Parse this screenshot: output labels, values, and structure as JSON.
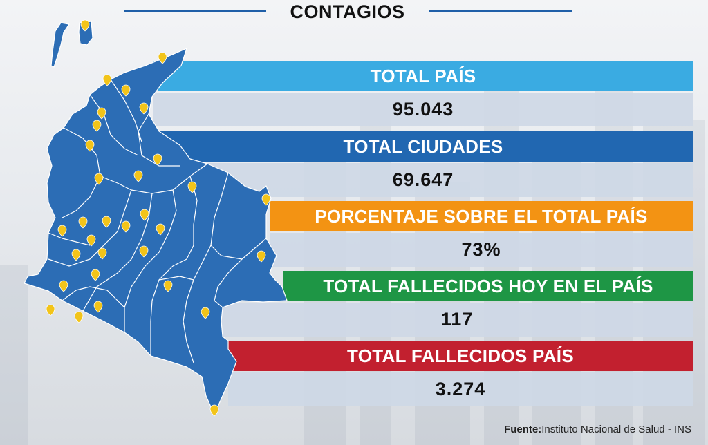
{
  "header": {
    "title": "CONTAGIOS"
  },
  "stats": [
    {
      "label": "TOTAL PAÍS",
      "value": "95.043",
      "color": "#3aabe2"
    },
    {
      "label": "TOTAL CIUDADES",
      "value": "69.647",
      "color": "#2167b1"
    },
    {
      "label": "PORCENTAJE SOBRE EL TOTAL PAÍS",
      "value": "73%",
      "color": "#f39313"
    },
    {
      "label": "TOTAL FALLECIDOS HOY EN EL PAÍS",
      "value": "117",
      "color": "#1e9645"
    },
    {
      "label": "TOTAL FALLECIDOS PAÍS",
      "value": "3.274",
      "color": "#c2202f"
    }
  ],
  "map": {
    "icon": "map-of-colombia",
    "marker_icon": "location-pin-icon",
    "fill_color": "#2c6db5",
    "marker_color": "#f2c41a"
  },
  "source": {
    "label": "Fuente:",
    "text": "Instituto Nacional de Salud - INS"
  }
}
